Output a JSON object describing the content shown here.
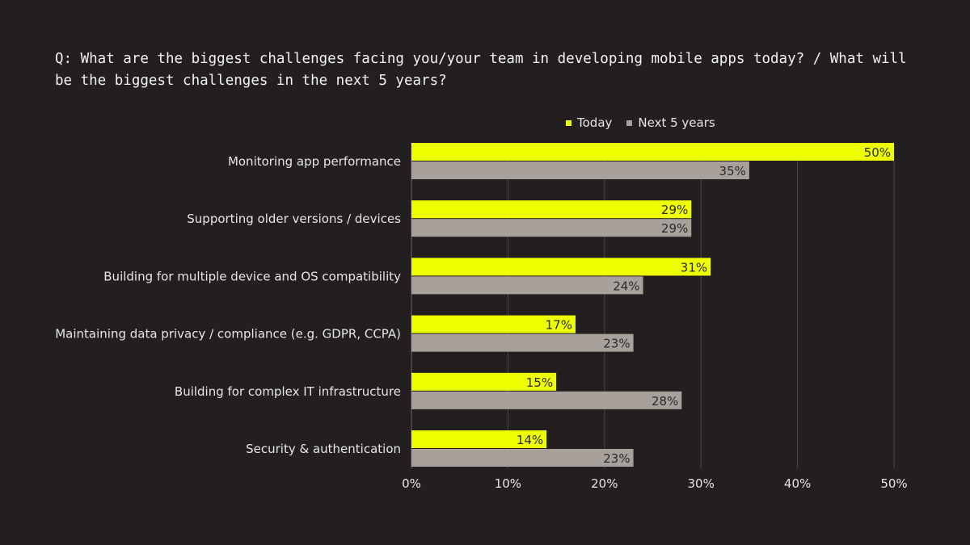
{
  "chart_data": {
    "type": "bar",
    "orientation": "horizontal",
    "title": "Q: What are the biggest challenges facing you/your team in developing mobile apps today? / What will be the biggest challenges in the next 5 years?",
    "categories": [
      "Monitoring app performance",
      "Supporting older versions / devices",
      "Building for multiple device and OS compatibility",
      "Maintaining data privacy / compliance (e.g. GDPR, CCPA)",
      "Building for complex IT infrastructure",
      "Security & authentication"
    ],
    "series": [
      {
        "name": "Today",
        "color": "#eeff00",
        "values": [
          50,
          29,
          31,
          17,
          15,
          14
        ]
      },
      {
        "name": "Next 5 years",
        "color": "#a8a09b",
        "values": [
          35,
          29,
          24,
          23,
          28,
          23
        ]
      }
    ],
    "xlim": [
      0,
      50
    ],
    "xticks": [
      "0%",
      "10%",
      "20%",
      "30%",
      "40%",
      "50%"
    ],
    "value_suffix": "%",
    "grid": true,
    "legend_position": "top"
  }
}
